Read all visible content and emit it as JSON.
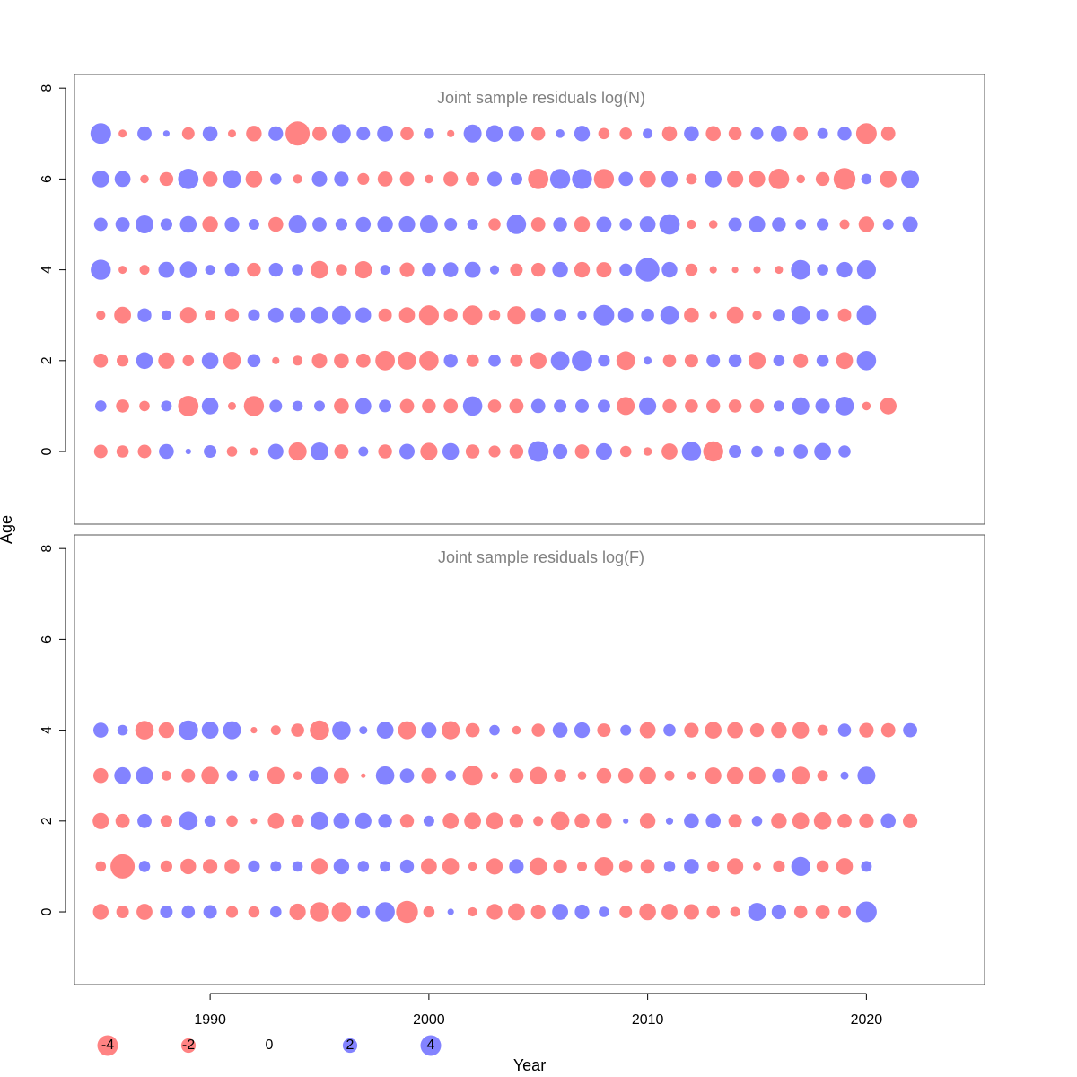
{
  "chart_data": {
    "type": "scatter",
    "subtype": "bubble-residuals",
    "xlabel": "Year",
    "ylabel": "Age",
    "xticks": [
      1990,
      2000,
      2010,
      2020
    ],
    "yticks": [
      0,
      2,
      4,
      6,
      8
    ],
    "xlim": [
      1983.8,
      2025.4
    ],
    "ylim": [
      -1.6,
      8.3
    ],
    "colors": {
      "negative": "#FF5A5A",
      "positive": "#5A5AFF",
      "frame": "#555555",
      "title": "#808080"
    },
    "legend": {
      "placement": "bottom-left",
      "items": [
        {
          "value": -4,
          "label": "-4"
        },
        {
          "value": -2,
          "label": "-2"
        },
        {
          "value": 0,
          "label": "0"
        },
        {
          "value": 2,
          "label": "2"
        },
        {
          "value": 4,
          "label": "4"
        }
      ]
    },
    "panels": [
      {
        "title": "Joint sample residuals log(N)",
        "first_year": 1985,
        "ages": [
          0,
          1,
          2,
          3,
          4,
          5,
          6,
          7
        ],
        "residuals": {
          "7": [
            4.0,
            -0.6,
            1.9,
            0.4,
            -1.5,
            2.1,
            -0.6,
            -2.3,
            2.0,
            -5.5,
            -1.9,
            3.3,
            1.7,
            2.4,
            -1.6,
            1.0,
            -0.5,
            3.0,
            2.6,
            2.3,
            -1.8,
            0.7,
            2.3,
            -1.2,
            -1.4,
            0.9,
            -2.1,
            2.1,
            -2.1,
            -1.6,
            1.5,
            2.4,
            -1.9,
            1.1,
            1.8,
            -4.0,
            -1.9
          ],
          "6": [
            2.7,
            2.4,
            -0.7,
            -1.8,
            3.9,
            -2.1,
            3.0,
            -2.6,
            1.2,
            -0.8,
            2.2,
            2.0,
            -1.3,
            -2.1,
            -1.9,
            -0.7,
            -2.0,
            -1.7,
            2.0,
            1.3,
            -3.9,
            3.8,
            3.8,
            -3.8,
            1.9,
            -2.5,
            2.5,
            -1.1,
            2.6,
            -2.5,
            -2.5,
            -3.9,
            -0.7,
            -1.8,
            -4.5,
            1.0,
            -2.6,
            3.0
          ],
          "5": [
            1.7,
            1.9,
            3.0,
            1.3,
            2.6,
            -2.3,
            2.0,
            1.1,
            -2.1,
            3.0,
            1.9,
            1.3,
            2.1,
            2.3,
            2.5,
            3.0,
            1.5,
            1.1,
            -1.4,
            3.5,
            -1.9,
            1.8,
            -2.3,
            2.2,
            1.4,
            2.4,
            3.9,
            -0.8,
            -0.7,
            1.7,
            2.5,
            1.8,
            1.0,
            1.3,
            -0.9,
            -2.3,
            1.1,
            2.2
          ],
          "4": [
            3.8,
            -0.6,
            -0.9,
            2.4,
            2.6,
            0.9,
            1.9,
            -1.8,
            1.8,
            1.2,
            -2.9,
            -1.2,
            -2.8,
            0.9,
            -2.0,
            1.8,
            2.1,
            2.4,
            0.8,
            -1.5,
            -1.8,
            2.3,
            -2.3,
            -2.2,
            1.5,
            5.3,
            2.3,
            -1.4,
            -0.5,
            -0.4,
            -0.5,
            -0.6,
            3.6,
            1.2,
            2.3,
            3.4
          ],
          "3": [
            -0.8,
            -2.7,
            1.8,
            0.9,
            -2.5,
            -1.1,
            -1.8,
            1.3,
            2.2,
            2.3,
            2.7,
            3.3,
            2.3,
            -1.7,
            -2.4,
            -3.7,
            -1.8,
            -3.6,
            -1.2,
            -3.1,
            2.0,
            1.5,
            0.8,
            4.0,
            2.2,
            1.6,
            3.2,
            -2.1,
            -0.5,
            -2.7,
            -0.8,
            1.5,
            3.2,
            1.5,
            -1.7,
            3.6
          ],
          "2": [
            -1.9,
            -1.3,
            2.6,
            -2.5,
            -1.2,
            2.6,
            -2.9,
            1.6,
            -0.5,
            -0.9,
            -2.2,
            -2.1,
            -1.9,
            -3.6,
            -3.1,
            -3.5,
            1.8,
            -1.5,
            1.4,
            -1.5,
            -2.6,
            3.3,
            3.9,
            1.3,
            -3.3,
            0.6,
            -1.6,
            -1.7,
            1.7,
            1.6,
            -2.8,
            1.2,
            -2.0,
            1.4,
            -2.7,
            3.5
          ],
          "1": [
            1.2,
            -1.6,
            -1.0,
            1.1,
            -3.9,
            2.6,
            -0.6,
            -3.8,
            1.5,
            1.0,
            1.1,
            -2.1,
            2.4,
            1.5,
            -1.9,
            -1.8,
            -1.9,
            3.5,
            -1.6,
            -1.9,
            1.9,
            1.5,
            1.7,
            1.5,
            -3.0,
            2.8,
            -1.8,
            -1.6,
            -1.8,
            -1.6,
            -1.8,
            1.1,
            2.8,
            2.0,
            3.3,
            -0.7,
            -2.6
          ],
          "0": [
            -1.7,
            -1.4,
            -1.7,
            2.1,
            0.3,
            1.5,
            -1.0,
            -0.6,
            2.2,
            -3.1,
            3.0,
            -1.9,
            0.9,
            -1.8,
            2.2,
            -2.8,
            2.6,
            -1.8,
            -1.3,
            -1.8,
            4.0,
            2.0,
            -1.9,
            2.5,
            -1.2,
            -0.7,
            -2.4,
            3.5,
            -3.8,
            1.5,
            1.2,
            1.0,
            1.9,
            2.7,
            1.4
          ]
        }
      },
      {
        "title": "Joint sample residuals log(F)",
        "first_year": 1985,
        "ages": [
          0,
          1,
          2,
          3,
          4,
          5,
          6,
          7
        ],
        "residuals": {
          "4": [
            2.1,
            1.0,
            -3.2,
            -2.3,
            3.6,
            2.7,
            3.0,
            -0.4,
            -0.9,
            -1.6,
            -3.5,
            3.2,
            0.6,
            2.7,
            -3.0,
            2.2,
            -3.1,
            -1.9,
            1.0,
            -0.7,
            -1.6,
            2.1,
            2.3,
            -1.7,
            1.1,
            -2.4,
            1.4,
            -2.0,
            -2.6,
            -2.4,
            -1.8,
            -2.3,
            -2.6,
            -1.1,
            1.6,
            -2.0,
            -1.9,
            1.9
          ],
          "3": [
            -2.1,
            2.6,
            2.8,
            -0.9,
            -1.7,
            -2.9,
            1.1,
            1.1,
            -2.8,
            -0.7,
            2.8,
            -2.2,
            -0.2,
            3.2,
            1.9,
            -2.2,
            1.0,
            -3.7,
            -0.5,
            -1.9,
            -2.8,
            -1.4,
            -0.7,
            -2.1,
            -2.1,
            -2.6,
            -0.9,
            -0.7,
            -2.5,
            -2.6,
            -2.7,
            1.7,
            -3.0,
            -1.1,
            0.6,
            3.0
          ],
          "2": [
            -2.5,
            -1.9,
            1.9,
            -1.3,
            3.3,
            1.2,
            -1.2,
            -0.4,
            -2.4,
            -1.5,
            3.0,
            2.4,
            2.5,
            1.8,
            -1.8,
            1.1,
            -2.4,
            -2.7,
            -2.7,
            -1.8,
            -0.9,
            -3.2,
            -2.1,
            -2.3,
            0.3,
            -2.3,
            0.5,
            2.1,
            2.1,
            -1.7,
            1.0,
            -2.3,
            -2.7,
            -2.9,
            -1.9,
            -2.0,
            2.1,
            -2.0
          ],
          "1": [
            -1.0,
            -5.5,
            1.2,
            -1.3,
            -2.3,
            -2.0,
            -2.1,
            1.3,
            1.1,
            1.0,
            -2.5,
            2.3,
            1.2,
            1.1,
            1.8,
            -2.4,
            -2.6,
            -0.7,
            -2.5,
            2.0,
            -2.9,
            -1.8,
            -0.9,
            -3.3,
            -1.6,
            -1.9,
            1.2,
            2.1,
            -1.3,
            -2.5,
            -0.6,
            -1.3,
            3.4,
            -1.4,
            -2.6,
            1.1
          ],
          "0": [
            -2.3,
            -1.5,
            -2.4,
            1.5,
            1.6,
            1.7,
            -1.3,
            -1.2,
            1.2,
            -2.5,
            -3.5,
            -3.5,
            1.6,
            3.5,
            -4.5,
            -1.2,
            0.4,
            -0.8,
            -2.3,
            -2.7,
            -2.0,
            2.4,
            2.0,
            1.0,
            -1.5,
            -2.6,
            -2.4,
            -2.2,
            -1.6,
            -0.9,
            3.0,
            2.0,
            -1.6,
            -1.9,
            -1.5,
            4.0
          ]
        }
      }
    ]
  }
}
